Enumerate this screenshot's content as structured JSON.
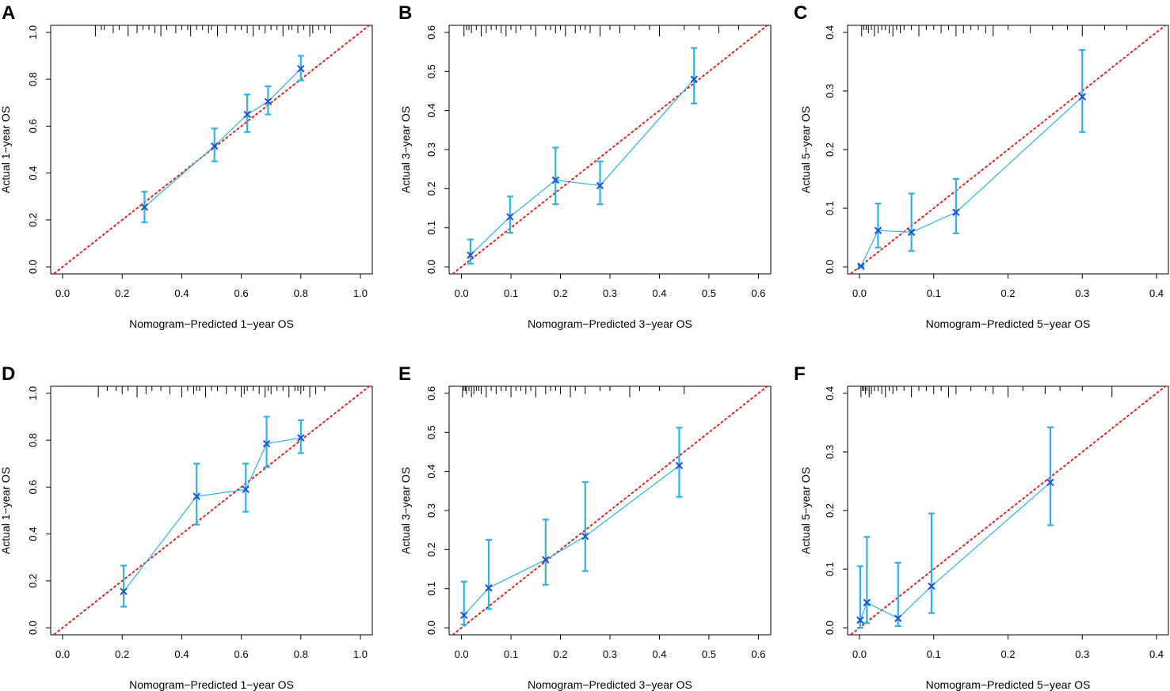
{
  "colors": {
    "ideal_line": "#e8201d",
    "curve": "#2bb3ea",
    "marker": "#1f4fd6",
    "rug": "#000000",
    "frame": "#000000"
  },
  "chart_data": [
    {
      "panel": "A",
      "type": "line",
      "xlabel": "Nomogram−Predicted  1−year OS",
      "ylabel": "Actual 1−year OS",
      "xlim": [
        -0.04,
        1.04
      ],
      "ylim": [
        -0.03,
        1.03
      ],
      "xticks": [
        0.0,
        0.2,
        0.4,
        0.6,
        0.8,
        1.0
      ],
      "xtick_labels": [
        "0.0",
        "0.2",
        "0.4",
        "0.6",
        "0.8",
        "1.0"
      ],
      "yticks": [
        0.0,
        0.2,
        0.4,
        0.6,
        0.8,
        1.0
      ],
      "ytick_labels": [
        "0.0",
        "0.2",
        "0.4",
        "0.6",
        "0.8",
        "1.0"
      ],
      "points": [
        {
          "x": 0.275,
          "y": 0.255,
          "lo": 0.19,
          "hi": 0.32
        },
        {
          "x": 0.51,
          "y": 0.515,
          "lo": 0.45,
          "hi": 0.59
        },
        {
          "x": 0.62,
          "y": 0.65,
          "lo": 0.575,
          "hi": 0.735
        },
        {
          "x": 0.69,
          "y": 0.705,
          "lo": 0.65,
          "hi": 0.77
        },
        {
          "x": 0.8,
          "y": 0.845,
          "lo": 0.795,
          "hi": 0.9
        }
      ],
      "rug": [
        0.11,
        0.13,
        0.14,
        0.17,
        0.19,
        0.22,
        0.25,
        0.27,
        0.29,
        0.31,
        0.33,
        0.35,
        0.38,
        0.4,
        0.42,
        0.43,
        0.45,
        0.47,
        0.49,
        0.5,
        0.52,
        0.55,
        0.58,
        0.6,
        0.62,
        0.64,
        0.66,
        0.68,
        0.7,
        0.72,
        0.74,
        0.76,
        0.77,
        0.79,
        0.81,
        0.83,
        0.84,
        0.86,
        0.88,
        0.9
      ]
    },
    {
      "panel": "B",
      "type": "line",
      "xlabel": "Nomogram−Predicted  3−year OS",
      "ylabel": "Actual 3−year OS",
      "xlim": [
        -0.025,
        0.625
      ],
      "ylim": [
        -0.018,
        0.618
      ],
      "xticks": [
        0.0,
        0.1,
        0.2,
        0.3,
        0.4,
        0.5,
        0.6
      ],
      "xtick_labels": [
        "0.0",
        "0.1",
        "0.2",
        "0.3",
        "0.4",
        "0.5",
        "0.6"
      ],
      "yticks": [
        0.0,
        0.1,
        0.2,
        0.3,
        0.4,
        0.5,
        0.6
      ],
      "ytick_labels": [
        "0.0",
        "0.1",
        "0.2",
        "0.3",
        "0.4",
        "0.5",
        "0.6"
      ],
      "points": [
        {
          "x": 0.018,
          "y": 0.03,
          "lo": 0.008,
          "hi": 0.07
        },
        {
          "x": 0.098,
          "y": 0.128,
          "lo": 0.087,
          "hi": 0.18
        },
        {
          "x": 0.19,
          "y": 0.222,
          "lo": 0.16,
          "hi": 0.305
        },
        {
          "x": 0.28,
          "y": 0.208,
          "lo": 0.16,
          "hi": 0.27
        },
        {
          "x": 0.47,
          "y": 0.48,
          "lo": 0.418,
          "hi": 0.56
        }
      ],
      "rug": [
        0.005,
        0.01,
        0.015,
        0.02,
        0.03,
        0.04,
        0.05,
        0.06,
        0.07,
        0.08,
        0.09,
        0.1,
        0.11,
        0.12,
        0.14,
        0.15,
        0.17,
        0.18,
        0.19,
        0.2,
        0.21,
        0.23,
        0.24,
        0.25,
        0.26,
        0.28,
        0.3,
        0.32,
        0.35,
        0.38,
        0.4,
        0.45,
        0.48,
        0.52,
        0.56
      ]
    },
    {
      "panel": "C",
      "type": "line",
      "xlabel": "Nomogram−Predicted  5−year OS",
      "ylabel": "Actual 5−year OS",
      "xlim": [
        -0.016,
        0.416
      ],
      "ylim": [
        -0.012,
        0.412
      ],
      "xticks": [
        0.0,
        0.1,
        0.2,
        0.3,
        0.4
      ],
      "xtick_labels": [
        "0.0",
        "0.1",
        "0.2",
        "0.3",
        "0.4"
      ],
      "yticks": [
        0.0,
        0.1,
        0.2,
        0.3,
        0.4
      ],
      "ytick_labels": [
        "0.0",
        "0.1",
        "0.2",
        "0.3",
        "0.4"
      ],
      "points": [
        {
          "x": 0.002,
          "y": 0.001,
          "lo": 0.0,
          "hi": 0.002
        },
        {
          "x": 0.025,
          "y": 0.062,
          "lo": 0.033,
          "hi": 0.108
        },
        {
          "x": 0.07,
          "y": 0.059,
          "lo": 0.027,
          "hi": 0.125
        },
        {
          "x": 0.13,
          "y": 0.093,
          "lo": 0.057,
          "hi": 0.15
        },
        {
          "x": 0.3,
          "y": 0.29,
          "lo": 0.23,
          "hi": 0.37
        }
      ],
      "rug": [
        0.003,
        0.006,
        0.009,
        0.012,
        0.016,
        0.02,
        0.025,
        0.03,
        0.035,
        0.04,
        0.045,
        0.05,
        0.055,
        0.06,
        0.07,
        0.08,
        0.09,
        0.1,
        0.11,
        0.12,
        0.13,
        0.14,
        0.15,
        0.16,
        0.17,
        0.18,
        0.2,
        0.23,
        0.26,
        0.28,
        0.3,
        0.33,
        0.36
      ]
    },
    {
      "panel": "D",
      "type": "line",
      "xlabel": "Nomogram−Predicted  1−year OS",
      "ylabel": "Actual 1−year OS",
      "xlim": [
        -0.04,
        1.04
      ],
      "ylim": [
        -0.03,
        1.03
      ],
      "xticks": [
        0.0,
        0.2,
        0.4,
        0.6,
        0.8,
        1.0
      ],
      "xtick_labels": [
        "0.0",
        "0.2",
        "0.4",
        "0.6",
        "0.8",
        "1.0"
      ],
      "yticks": [
        0.0,
        0.2,
        0.4,
        0.6,
        0.8,
        1.0
      ],
      "ytick_labels": [
        "0.0",
        "0.2",
        "0.4",
        "0.6",
        "0.8",
        "1.0"
      ],
      "points": [
        {
          "x": 0.205,
          "y": 0.155,
          "lo": 0.09,
          "hi": 0.265
        },
        {
          "x": 0.45,
          "y": 0.56,
          "lo": 0.44,
          "hi": 0.7
        },
        {
          "x": 0.615,
          "y": 0.59,
          "lo": 0.495,
          "hi": 0.7
        },
        {
          "x": 0.685,
          "y": 0.785,
          "lo": 0.685,
          "hi": 0.9
        },
        {
          "x": 0.8,
          "y": 0.81,
          "lo": 0.745,
          "hi": 0.885
        }
      ],
      "rug": [
        0.12,
        0.15,
        0.18,
        0.2,
        0.22,
        0.25,
        0.28,
        0.3,
        0.33,
        0.36,
        0.4,
        0.42,
        0.44,
        0.45,
        0.46,
        0.48,
        0.5,
        0.52,
        0.55,
        0.58,
        0.6,
        0.61,
        0.62,
        0.64,
        0.66,
        0.68,
        0.69,
        0.7,
        0.72,
        0.74,
        0.76,
        0.78,
        0.79,
        0.8,
        0.81,
        0.83,
        0.85,
        0.88
      ]
    },
    {
      "panel": "E",
      "type": "line",
      "xlabel": "Nomogram−Predicted  3−year OS",
      "ylabel": "Actual 3−year OS",
      "xlim": [
        -0.025,
        0.625
      ],
      "ylim": [
        -0.018,
        0.618
      ],
      "xticks": [
        0.0,
        0.1,
        0.2,
        0.3,
        0.4,
        0.5,
        0.6
      ],
      "xtick_labels": [
        "0.0",
        "0.1",
        "0.2",
        "0.3",
        "0.4",
        "0.5",
        "0.6"
      ],
      "yticks": [
        0.0,
        0.1,
        0.2,
        0.3,
        0.4,
        0.5,
        0.6
      ],
      "ytick_labels": [
        "0.0",
        "0.1",
        "0.2",
        "0.3",
        "0.4",
        "0.5",
        "0.6"
      ],
      "points": [
        {
          "x": 0.005,
          "y": 0.032,
          "lo": 0.008,
          "hi": 0.118
        },
        {
          "x": 0.055,
          "y": 0.102,
          "lo": 0.048,
          "hi": 0.225
        },
        {
          "x": 0.17,
          "y": 0.174,
          "lo": 0.11,
          "hi": 0.277
        },
        {
          "x": 0.25,
          "y": 0.234,
          "lo": 0.145,
          "hi": 0.373
        },
        {
          "x": 0.44,
          "y": 0.415,
          "lo": 0.335,
          "hi": 0.512
        }
      ],
      "rug": [
        0.002,
        0.005,
        0.008,
        0.01,
        0.015,
        0.02,
        0.025,
        0.03,
        0.035,
        0.04,
        0.05,
        0.06,
        0.07,
        0.08,
        0.09,
        0.1,
        0.11,
        0.12,
        0.13,
        0.14,
        0.15,
        0.17,
        0.18,
        0.19,
        0.2,
        0.22,
        0.23,
        0.25,
        0.28,
        0.3,
        0.34,
        0.36,
        0.4,
        0.45
      ]
    },
    {
      "panel": "F",
      "type": "line",
      "xlabel": "Nomogram−Predicted  5−year OS",
      "ylabel": "Actual 5−year OS",
      "xlim": [
        -0.016,
        0.416
      ],
      "ylim": [
        -0.012,
        0.412
      ],
      "xticks": [
        0.0,
        0.1,
        0.2,
        0.3,
        0.4
      ],
      "xtick_labels": [
        "0.0",
        "0.1",
        "0.2",
        "0.3",
        "0.4"
      ],
      "yticks": [
        0.0,
        0.1,
        0.2,
        0.3,
        0.4
      ],
      "ytick_labels": [
        "0.0",
        "0.1",
        "0.2",
        "0.3",
        "0.4"
      ],
      "points": [
        {
          "x": 0.001,
          "y": 0.013,
          "lo": 0.0,
          "hi": 0.105
        },
        {
          "x": 0.01,
          "y": 0.043,
          "lo": 0.008,
          "hi": 0.155
        },
        {
          "x": 0.052,
          "y": 0.016,
          "lo": 0.003,
          "hi": 0.111
        },
        {
          "x": 0.097,
          "y": 0.071,
          "lo": 0.025,
          "hi": 0.195
        },
        {
          "x": 0.257,
          "y": 0.248,
          "lo": 0.175,
          "hi": 0.342
        }
      ],
      "rug": [
        0.002,
        0.004,
        0.006,
        0.008,
        0.01,
        0.013,
        0.016,
        0.02,
        0.025,
        0.03,
        0.035,
        0.04,
        0.045,
        0.05,
        0.06,
        0.07,
        0.08,
        0.09,
        0.1,
        0.11,
        0.12,
        0.13,
        0.15,
        0.17,
        0.18,
        0.2,
        0.22,
        0.25,
        0.27,
        0.3,
        0.34
      ]
    }
  ]
}
